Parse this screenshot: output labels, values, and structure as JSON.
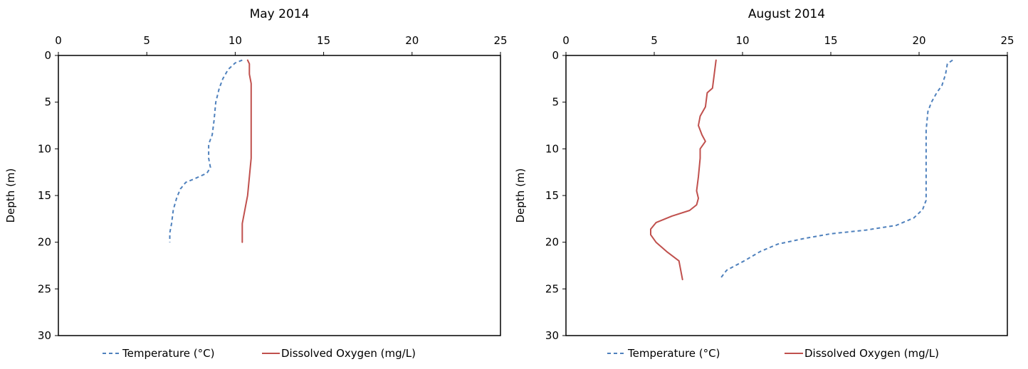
{
  "chart_data": [
    {
      "type": "line",
      "title": "May 2014",
      "xlabel": "",
      "ylabel": "Depth (m)",
      "xlim": [
        0,
        25
      ],
      "ylim": [
        0,
        30
      ],
      "x_ticks": [
        0,
        5,
        10,
        15,
        20,
        25
      ],
      "y_ticks": [
        0,
        5,
        10,
        15,
        20,
        25,
        30
      ],
      "x_axis_position": "top",
      "y_axis_inverted": true,
      "grid": false,
      "legend_position": "bottom",
      "series": [
        {
          "name": "Temperature (°C)",
          "color": "#4f81bd",
          "style": "dashed",
          "points": [
            [
              10.4,
              0.5
            ],
            [
              10.0,
              0.8
            ],
            [
              9.6,
              1.5
            ],
            [
              9.3,
              2.5
            ],
            [
              9.1,
              3.5
            ],
            [
              8.9,
              5.0
            ],
            [
              8.8,
              7.0
            ],
            [
              8.7,
              8.5
            ],
            [
              8.5,
              9.5
            ],
            [
              8.5,
              11.0
            ],
            [
              8.6,
              12.0
            ],
            [
              8.4,
              12.6
            ],
            [
              7.7,
              13.2
            ],
            [
              7.2,
              13.6
            ],
            [
              6.9,
              14.3
            ],
            [
              6.7,
              15.2
            ],
            [
              6.5,
              16.5
            ],
            [
              6.4,
              18.0
            ],
            [
              6.3,
              19.0
            ],
            [
              6.3,
              20.0
            ]
          ]
        },
        {
          "name": "Dissolved Oxygen (mg/L)",
          "color": "#c0504d",
          "style": "solid",
          "points": [
            [
              10.7,
              0.5
            ],
            [
              10.8,
              0.9
            ],
            [
              10.8,
              2.0
            ],
            [
              10.9,
              3.0
            ],
            [
              10.9,
              5.0
            ],
            [
              10.9,
              7.0
            ],
            [
              10.9,
              9.0
            ],
            [
              10.9,
              11.0
            ],
            [
              10.8,
              13.0
            ],
            [
              10.7,
              15.0
            ],
            [
              10.6,
              16.0
            ],
            [
              10.5,
              17.0
            ],
            [
              10.4,
              18.0
            ],
            [
              10.4,
              19.0
            ],
            [
              10.4,
              20.0
            ]
          ]
        }
      ]
    },
    {
      "type": "line",
      "title": "August 2014",
      "xlabel": "",
      "ylabel": "Depth (m)",
      "xlim": [
        0,
        25
      ],
      "ylim": [
        0,
        30
      ],
      "x_ticks": [
        0,
        5,
        10,
        15,
        20,
        25
      ],
      "y_ticks": [
        0,
        5,
        10,
        15,
        20,
        25,
        30
      ],
      "x_axis_position": "top",
      "y_axis_inverted": true,
      "grid": false,
      "legend_position": "bottom",
      "series": [
        {
          "name": "Temperature (°C)",
          "color": "#4f81bd",
          "style": "dashed",
          "points": [
            [
              21.9,
              0.5
            ],
            [
              21.6,
              0.9
            ],
            [
              21.5,
              2.0
            ],
            [
              21.3,
              3.2
            ],
            [
              21.0,
              4.0
            ],
            [
              20.7,
              5.0
            ],
            [
              20.5,
              6.0
            ],
            [
              20.4,
              8.0
            ],
            [
              20.4,
              11.0
            ],
            [
              20.4,
              14.0
            ],
            [
              20.4,
              15.5
            ],
            [
              20.2,
              16.5
            ],
            [
              19.7,
              17.4
            ],
            [
              18.7,
              18.2
            ],
            [
              17.0,
              18.7
            ],
            [
              15.0,
              19.1
            ],
            [
              13.5,
              19.6
            ],
            [
              12.0,
              20.2
            ],
            [
              11.0,
              21.0
            ],
            [
              10.1,
              22.0
            ],
            [
              9.5,
              22.6
            ],
            [
              9.1,
              23.0
            ],
            [
              8.9,
              23.5
            ],
            [
              8.7,
              24.0
            ]
          ]
        },
        {
          "name": "Dissolved Oxygen (mg/L)",
          "color": "#c0504d",
          "style": "solid",
          "points": [
            [
              8.5,
              0.5
            ],
            [
              8.4,
              2.0
            ],
            [
              8.3,
              3.5
            ],
            [
              8.0,
              4.0
            ],
            [
              7.9,
              5.5
            ],
            [
              7.6,
              6.5
            ],
            [
              7.5,
              7.5
            ],
            [
              7.7,
              8.5
            ],
            [
              7.9,
              9.2
            ],
            [
              7.6,
              10.0
            ],
            [
              7.6,
              11.0
            ],
            [
              7.5,
              13.0
            ],
            [
              7.4,
              14.5
            ],
            [
              7.5,
              15.3
            ],
            [
              7.4,
              16.0
            ],
            [
              7.0,
              16.6
            ],
            [
              6.0,
              17.2
            ],
            [
              5.1,
              17.9
            ],
            [
              4.8,
              18.6
            ],
            [
              4.8,
              19.2
            ],
            [
              5.1,
              20.0
            ],
            [
              5.7,
              21.0
            ],
            [
              6.4,
              22.0
            ],
            [
              6.5,
              23.0
            ],
            [
              6.6,
              24.0
            ]
          ]
        }
      ]
    }
  ]
}
